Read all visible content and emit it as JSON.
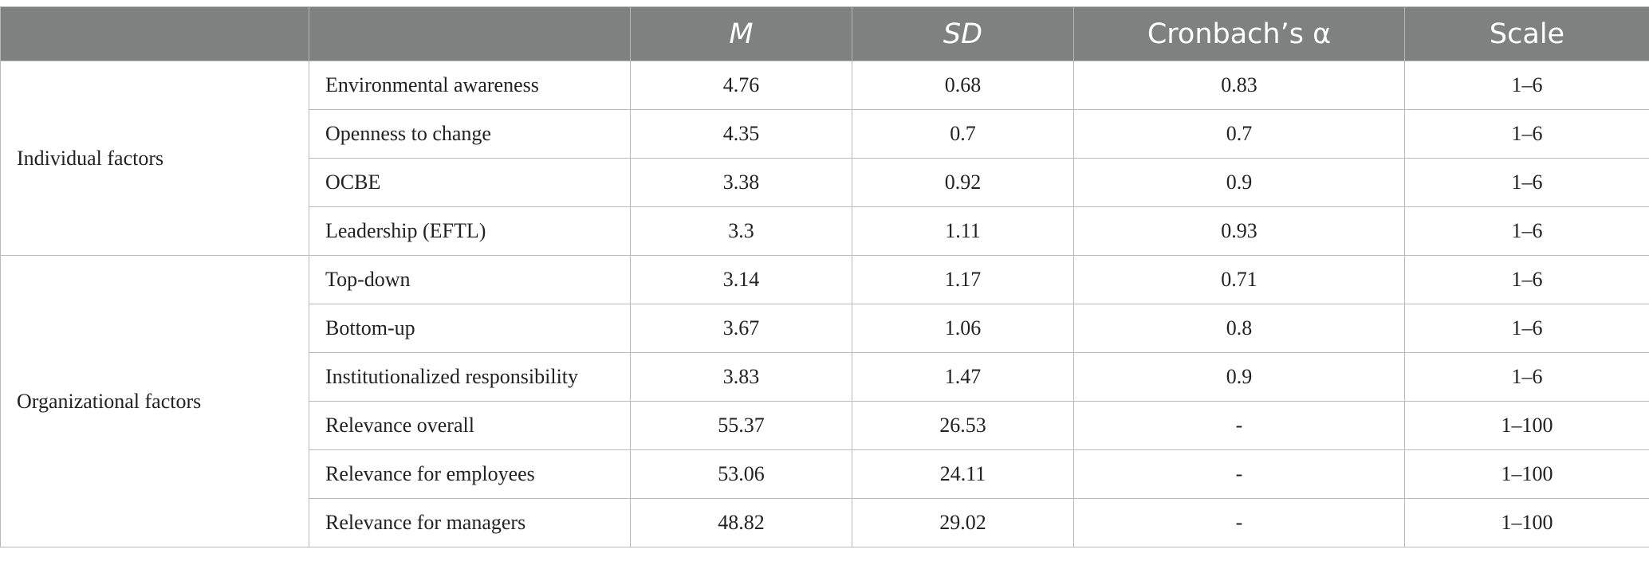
{
  "header": {
    "blank": "",
    "mean": "M",
    "sd": "SD",
    "alpha": "Cronbach’s α",
    "scale": "Scale"
  },
  "groups": [
    {
      "name": "Individual factors",
      "rows": [
        {
          "label": "Environmental awareness",
          "m": "4.76",
          "sd": "0.68",
          "alpha": "0.83",
          "scale": "1–6"
        },
        {
          "label": "Openness to change",
          "m": "4.35",
          "sd": "0.7",
          "alpha": "0.7",
          "scale": "1–6"
        },
        {
          "label": "OCBE",
          "m": "3.38",
          "sd": "0.92",
          "alpha": "0.9",
          "scale": "1–6"
        },
        {
          "label": "Leadership (EFTL)",
          "m": "3.3",
          "sd": "1.11",
          "alpha": "0.93",
          "scale": "1–6"
        }
      ]
    },
    {
      "name": "Organizational factors",
      "rows": [
        {
          "label": "Top-down",
          "m": "3.14",
          "sd": "1.17",
          "alpha": "0.71",
          "scale": "1–6"
        },
        {
          "label": "Bottom-up",
          "m": "3.67",
          "sd": "1.06",
          "alpha": "0.8",
          "scale": "1–6"
        },
        {
          "label": "Institutionalized responsibility",
          "m": "3.83",
          "sd": "1.47",
          "alpha": "0.9",
          "scale": "1–6"
        },
        {
          "label": "Relevance overall",
          "m": "55.37",
          "sd": "26.53",
          "alpha": "-",
          "scale": "1–100"
        },
        {
          "label": "Relevance for employees",
          "m": "53.06",
          "sd": "24.11",
          "alpha": "-",
          "scale": "1–100"
        },
        {
          "label": "Relevance for managers",
          "m": "48.82",
          "sd": "29.02",
          "alpha": "-",
          "scale": "1–100"
        }
      ]
    }
  ]
}
